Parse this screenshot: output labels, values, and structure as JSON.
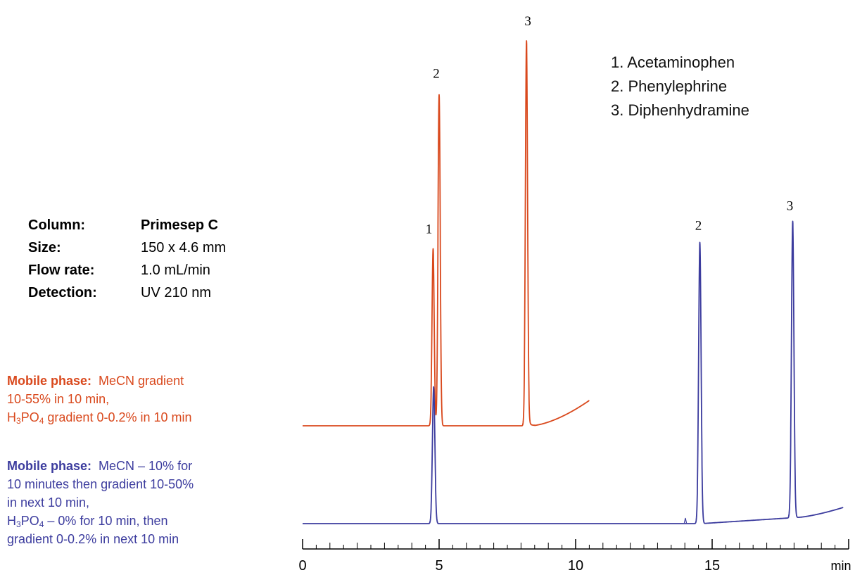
{
  "chart_data": {
    "type": "line",
    "title": "",
    "xlabel": "",
    "ylabel": "",
    "x_unit": "min",
    "xlim": [
      0,
      20
    ],
    "x_ticks": [
      0,
      5,
      10,
      15
    ],
    "legend_placement": "top-right",
    "grid": false,
    "series": [
      {
        "color": "#d9481c",
        "x_end": 10.5,
        "peaks": [
          {
            "label": "1",
            "rt": 4.78,
            "height": 0.46
          },
          {
            "label": "2",
            "rt": 5.0,
            "height": 0.86
          },
          {
            "label": "3",
            "rt": 8.2,
            "height": 1.0
          }
        ]
      },
      {
        "color": "#3c3c9e",
        "x_end": 19.8,
        "peaks": [
          {
            "label": "1",
            "rt": 4.8,
            "height": 0.36
          },
          {
            "label": "2",
            "rt": 14.55,
            "height": 0.74
          },
          {
            "label": "3",
            "rt": 17.95,
            "height": 0.78
          }
        ]
      }
    ]
  },
  "legend": {
    "items": [
      "1. Acetaminophen",
      "2. Phenylephrine",
      "3. Diphenhydramine"
    ]
  },
  "conditions": [
    {
      "label": "Column:",
      "value": "Primesep  C"
    },
    {
      "label": "Size:",
      "value": "150 x  4.6 mm"
    },
    {
      "label": "Flow rate:",
      "value": "1.0 mL/min"
    },
    {
      "label": "Detection:",
      "value": "UV  210 nm"
    }
  ],
  "mobile_phase_1": {
    "label": "Mobile phase:",
    "line1": "MeCN  gradient",
    "line2": "10-55% in 10 min,",
    "line3_a": "H",
    "line3_sub1": "3",
    "line3_b": "PO",
    "line3_sub2": "4",
    "line3_c": " gradient 0-0.2% in 10 min"
  },
  "mobile_phase_2": {
    "label": "Mobile phase:",
    "line1": "MeCN – 10% for",
    "line2": "10 minutes then gradient 10-50%",
    "line3": "in next 10 min,",
    "line4_a": "H",
    "line4_sub1": "3",
    "line4_b": "PO",
    "line4_sub2": "4",
    "line4_c": " – 0% for 10  min, then",
    "line5": "gradient 0-0.2% in next 10 min"
  }
}
